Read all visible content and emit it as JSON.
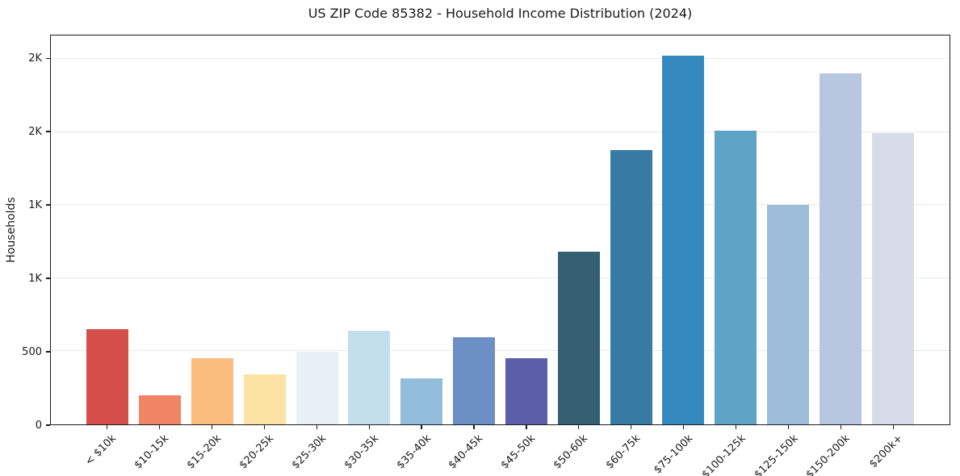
{
  "title": "US ZIP Code 85382 - Household Income Distribution (2024)",
  "chart_data": {
    "type": "bar",
    "title": "US ZIP Code 85382 - Household Income Distribution (2024)",
    "xlabel": "",
    "ylabel": "Households",
    "categories": [
      "< $10k",
      "$10-15k",
      "$15-20k",
      "$20-25k",
      "$25-30k",
      "$30-35k",
      "$35-40k",
      "$40-45k",
      "$45-50k",
      "$50-60k",
      "$60-75k",
      "$75-100k",
      "$100-125k",
      "$125-150k",
      "$150-200k",
      "$200k+"
    ],
    "values": [
      650,
      200,
      450,
      345,
      495,
      640,
      315,
      595,
      455,
      1180,
      1875,
      2520,
      2010,
      1500,
      2400,
      1995
    ],
    "bar_colors": [
      "#d6504b",
      "#f08465",
      "#fbbd7d",
      "#fde3a3",
      "#e7f1f5",
      "#c3dfeb",
      "#92bddb",
      "#6c90c4",
      "#5b5ea9",
      "#355f73",
      "#377ca4",
      "#348abe",
      "#5da4c7",
      "#9dbdd8",
      "#b8c7e0",
      "#d8dbe8"
    ],
    "ylim": [
      0,
      2660
    ],
    "yticks": {
      "values": [
        0,
        500,
        1000,
        1500,
        2000,
        2500
      ],
      "labels": [
        "0",
        "500",
        "1K",
        "1K",
        "2K",
        "2K"
      ]
    },
    "grid": "horizontal gridlines at y ticks",
    "grid_color": "#e9e9e9",
    "axis_color": "#1a1a1a",
    "background_color": "#ffffff",
    "legend": "none",
    "x_tick_rotation_deg": 45
  }
}
